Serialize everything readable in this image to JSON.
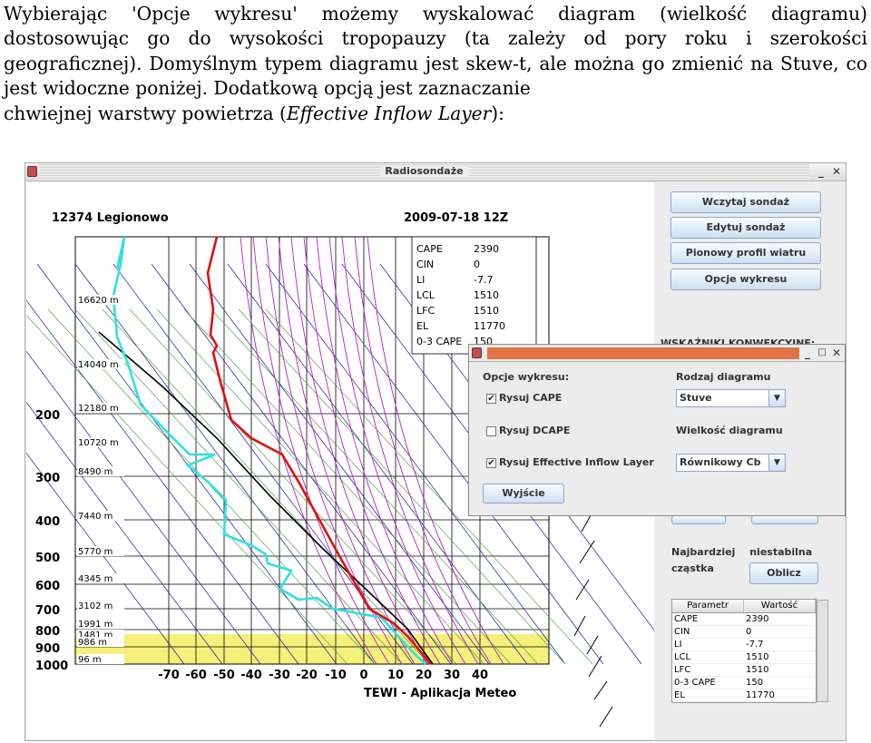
{
  "paragraph": {
    "text_main": "Wybierając 'Opcje wykresu' możemy wyskalować diagram (wielkość diagramu) dostosowując go do wysokości tropopauzy (ta zależy od pory roku i szerokości geograficznej). Domyślnym typem diagramu jest skew-t, ale można go zmienić na Stuve, co jest widoczne poniżej. Dodatkową opcją jest zaznaczanie",
    "text_line_start": "chwiejnej warstwy powietrza (",
    "text_italic": "Effective Inflow Layer",
    "text_end": "):"
  },
  "window": {
    "title": "Radiosondaże",
    "minimize_glyph": "_",
    "close_glyph": "✕"
  },
  "chart": {
    "station": "12374 Legionowo",
    "datetime": "2009-07-18 12Z",
    "footer": "TEWI - Aplikacja Meteo",
    "pressure_labels": [
      "200",
      "300",
      "400",
      "500",
      "600",
      "700",
      "800",
      "900",
      "1000"
    ],
    "height_labels": [
      "16620 m",
      "14040 m",
      "12180 m",
      "10720 m",
      "8490 m",
      "7440 m",
      "5770 m",
      "4345 m",
      "3102 m",
      "1991 m",
      "1481 m",
      "986 m",
      "96 m"
    ],
    "temp_labels": [
      "-70",
      "-60",
      "-50",
      "-40",
      "-30",
      "-20",
      "-10",
      "0",
      "10",
      "20",
      "30",
      "40"
    ],
    "indices": [
      {
        "name": "CAPE",
        "value": "2390"
      },
      {
        "name": "CIN",
        "value": "0"
      },
      {
        "name": "LI",
        "value": "-7.7"
      },
      {
        "name": "LCL",
        "value": "1510"
      },
      {
        "name": "LFC",
        "value": "1510"
      },
      {
        "name": "EL",
        "value": "11770"
      },
      {
        "name": "0-3 CAPE",
        "value": "150"
      }
    ],
    "colors": {
      "temperature": "#e01010",
      "dewpoint": "#30e0e0",
      "parcel": "#000000",
      "isotherm": "#000000",
      "dry_adiabat": "#1a1aa0",
      "moist_adiabat": "#b020c0",
      "mixing_ratio": "#3a9a3a",
      "inflow_layer": "#f5f07a"
    }
  },
  "side": {
    "btn_load": "Wczytaj sondaż",
    "btn_edit": "Edytuj sondaż",
    "btn_wind": "Pionowy profil wiatru",
    "btn_options": "Opcje wykresu",
    "indices_heading": "WSKAŹNIKI KONWEKCYJNE:",
    "unstable_label_1": "Najbardziej niestabilna",
    "unstable_label_2": "cząstka",
    "btn_calc": "Oblicz",
    "table_headers": [
      "Parametr",
      "Wartość"
    ],
    "table_rows": [
      [
        "CAPE",
        "2390"
      ],
      [
        "CIN",
        "0"
      ],
      [
        "LI",
        "-7.7"
      ],
      [
        "LCL",
        "1510"
      ],
      [
        "LFC",
        "1510"
      ],
      [
        "0-3 CAPE",
        "150"
      ],
      [
        "EL",
        "11770"
      ]
    ]
  },
  "dialog": {
    "options_label": "Opcje wykresu:",
    "diagram_type_label": "Rodzaj diagramu",
    "diagram_type_value": "Stuve",
    "size_label": "Wielkość diagramu",
    "size_value": "Równikowy Cb",
    "chk_cape": "Rysuj CAPE",
    "chk_cape_checked": true,
    "chk_dcape": "Rysuj DCAPE",
    "chk_dcape_checked": false,
    "chk_inflow": "Rysuj Effective Inflow Layer",
    "chk_inflow_checked": true,
    "btn_exit": "Wyjście",
    "minimize_glyph": "_",
    "close_glyph": "✕"
  }
}
